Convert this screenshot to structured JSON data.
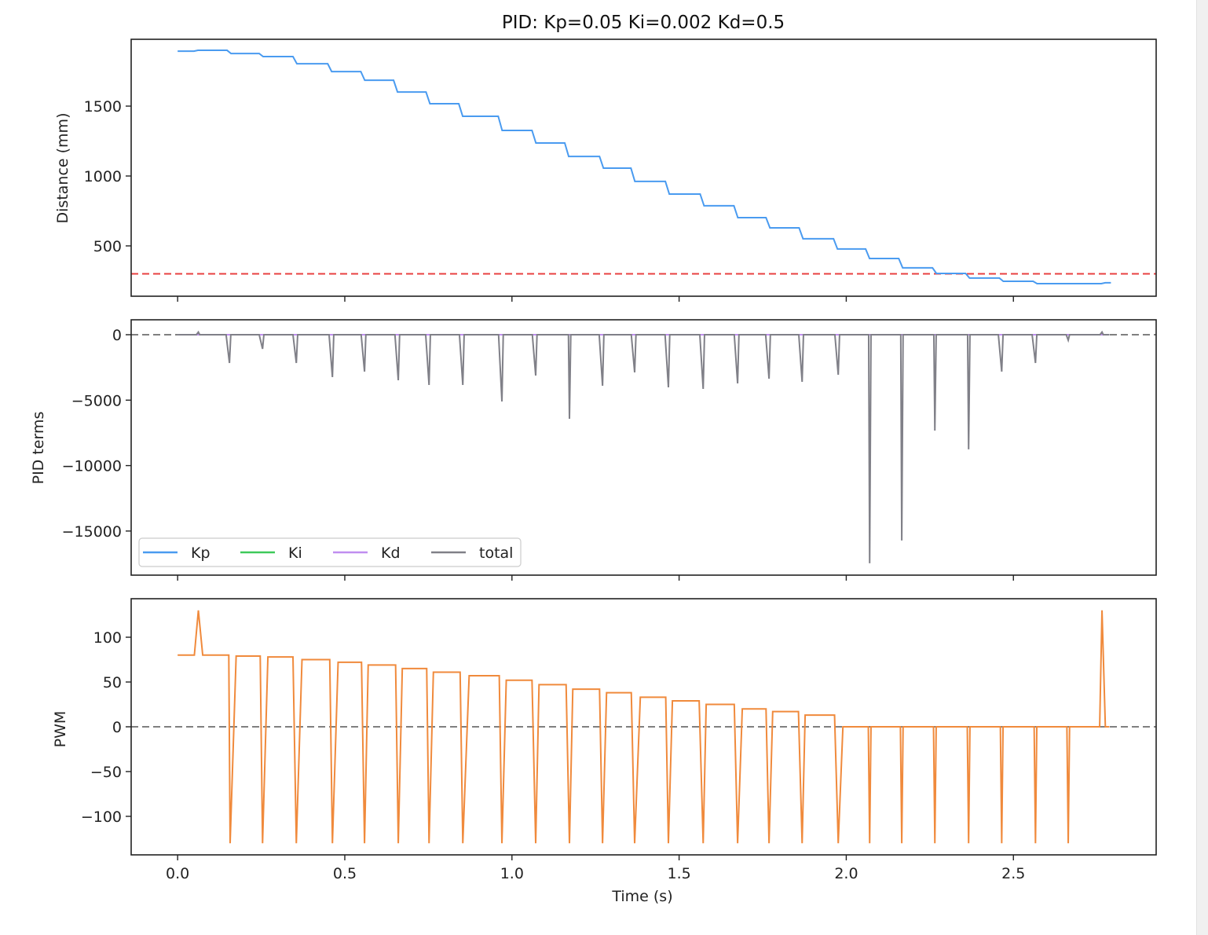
{
  "chart_data": [
    {
      "type": "line",
      "title": "PID: Kp=0.05 Ki=0.002 Kd=0.5",
      "ylabel": "Distance (mm)",
      "xlim": [
        -0.139,
        2.927
      ],
      "ylim": [
        140,
        1978
      ],
      "yticks": [
        500,
        1000,
        1500
      ],
      "grid": false,
      "drawstyle": "steps-post",
      "color": "#4a9bf0",
      "x": [
        0,
        0.056,
        0.155,
        0.251,
        0.352,
        0.456,
        0.555,
        0.653,
        0.75,
        0.848,
        0.966,
        1.067,
        1.165,
        1.269,
        1.363,
        1.466,
        1.57,
        1.671,
        1.767,
        1.866,
        1.969,
        2.065,
        2.164,
        2.265,
        2.364,
        2.465,
        2.566,
        2.664,
        2.77,
        2.787
      ],
      "y": [
        1893,
        1899,
        1876,
        1854,
        1803,
        1747,
        1685,
        1601,
        1517,
        1427,
        1326,
        1236,
        1140,
        1056,
        961,
        871,
        787,
        702,
        629,
        551,
        478,
        410,
        343,
        303,
        270,
        247,
        230,
        230,
        236,
        236
      ],
      "hline": {
        "y": 300,
        "color": "#e84040",
        "style": "dashed"
      }
    },
    {
      "type": "line",
      "ylabel": "PID terms",
      "xlim": [
        -0.139,
        2.927
      ],
      "ylim": [
        -18370,
        1140
      ],
      "yticks": [
        0,
        -5000,
        -10000,
        -15000
      ],
      "yticklabels": [
        "0",
        "−5000",
        "−10000",
        "−15000"
      ],
      "grid": false,
      "legend": {
        "placement": "lower-left"
      },
      "hline": {
        "y": 0,
        "color": "#808080",
        "style": "dashed"
      },
      "series": [
        {
          "name": "Kp",
          "color": "#4a9bf0",
          "x": [
            0,
            2.787
          ],
          "y": [
            0,
            0
          ]
        },
        {
          "name": "Ki",
          "color": "#3ec95a",
          "x": [
            0,
            2.787
          ],
          "y": [
            0,
            0
          ]
        },
        {
          "name": "Kd",
          "color": "#c08ef0",
          "x": [
            0,
            2.787
          ],
          "y": [
            0,
            0
          ]
        },
        {
          "name": "total",
          "color": "#808088",
          "spike_times": [
            0.062,
            0.155,
            0.254,
            0.355,
            0.463,
            0.559,
            0.66,
            0.752,
            0.853,
            0.97,
            1.071,
            1.172,
            1.271,
            1.367,
            1.468,
            1.572,
            1.675,
            1.769,
            1.868,
            1.976,
            2.07,
            2.166,
            2.265,
            2.366,
            2.465,
            2.566,
            2.664,
            2.765
          ],
          "spike_values": [
            200,
            -2160,
            -1080,
            -2160,
            -3240,
            -2820,
            -3480,
            -3840,
            -3840,
            -5100,
            -3120,
            -6420,
            -3900,
            -2880,
            -4020,
            -4140,
            -3720,
            -3360,
            -3600,
            -3060,
            -17460,
            -15720,
            -7320,
            -8760,
            -2820,
            -2160,
            -420,
            200
          ]
        }
      ]
    },
    {
      "type": "line",
      "ylabel": "PWM",
      "xlabel": "Time (s)",
      "xlim": [
        -0.139,
        2.927
      ],
      "ylim": [
        -143,
        143
      ],
      "xticks": [
        0.0,
        0.5,
        1.0,
        1.5,
        2.0,
        2.5
      ],
      "xticklabels": [
        "0.0",
        "0.5",
        "1.0",
        "1.5",
        "2.0",
        "2.5"
      ],
      "yticks": [
        100,
        50,
        0,
        -50,
        -100
      ],
      "yticklabels": [
        "100",
        "50",
        "0",
        "−50",
        "−100"
      ],
      "grid": false,
      "color": "#f08a3c",
      "hline": {
        "y": 0,
        "color": "#808080",
        "style": "dashed"
      },
      "x": [
        0,
        0.05,
        0.062,
        0.075,
        0.153,
        0.157,
        0.175,
        0.247,
        0.254,
        0.27,
        0.345,
        0.355,
        0.372,
        0.455,
        0.463,
        0.48,
        0.55,
        0.559,
        0.57,
        0.652,
        0.66,
        0.672,
        0.745,
        0.752,
        0.765,
        0.845,
        0.853,
        0.872,
        0.962,
        0.97,
        0.983,
        1.06,
        1.071,
        1.081,
        1.162,
        1.172,
        1.182,
        1.262,
        1.271,
        1.283,
        1.357,
        1.367,
        1.384,
        1.46,
        1.468,
        1.48,
        1.56,
        1.572,
        1.581,
        1.665,
        1.675,
        1.689,
        1.76,
        1.769,
        1.78,
        1.857,
        1.868,
        1.877,
        1.965,
        1.976,
        1.99,
        2.066,
        2.07,
        2.074,
        2.162,
        2.166,
        2.17,
        2.261,
        2.265,
        2.269,
        2.362,
        2.366,
        2.37,
        2.461,
        2.465,
        2.469,
        2.562,
        2.566,
        2.57,
        2.66,
        2.664,
        2.668,
        2.758,
        2.765,
        2.775,
        2.787
      ],
      "y": [
        80,
        80,
        130,
        80,
        80,
        -130,
        79,
        79,
        -130,
        78,
        78,
        -130,
        75,
        75,
        -130,
        72,
        72,
        -130,
        69,
        69,
        -130,
        65,
        65,
        -130,
        61,
        61,
        -130,
        57,
        57,
        -130,
        52,
        52,
        -130,
        47,
        47,
        -130,
        42,
        42,
        -130,
        38,
        38,
        -130,
        33,
        33,
        -130,
        29,
        29,
        -130,
        25,
        25,
        -130,
        20,
        20,
        -130,
        17,
        17,
        -130,
        13,
        13,
        -130,
        0,
        0,
        -130,
        0,
        0,
        -130,
        0,
        0,
        -130,
        0,
        0,
        -130,
        0,
        0,
        -130,
        0,
        0,
        -130,
        0,
        0,
        -130,
        0,
        0,
        130,
        0,
        0
      ]
    }
  ]
}
